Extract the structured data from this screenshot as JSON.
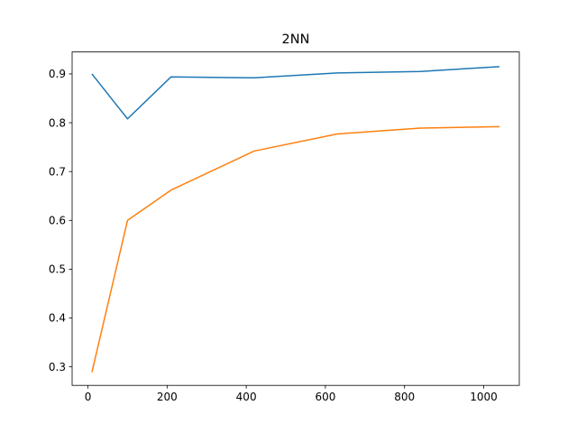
{
  "chart_data": {
    "type": "line",
    "title": "2NN",
    "xlabel": "",
    "ylabel": "",
    "xlim": [
      -40,
      1090
    ],
    "ylim": [
      0.262,
      0.945
    ],
    "xticks": [
      0,
      200,
      400,
      600,
      800,
      1000
    ],
    "yticks": [
      0.3,
      0.4,
      0.5,
      0.6,
      0.7,
      0.8,
      0.9
    ],
    "grid": false,
    "series": [
      {
        "color": "#1f77b4",
        "x": [
          10,
          100,
          210,
          420,
          630,
          840,
          1040
        ],
        "y": [
          0.9,
          0.808,
          0.894,
          0.892,
          0.902,
          0.905,
          0.915
        ]
      },
      {
        "color": "#ff7f0e",
        "x": [
          10,
          100,
          210,
          420,
          630,
          840,
          1040
        ],
        "y": [
          0.289,
          0.6,
          0.662,
          0.742,
          0.777,
          0.789,
          0.792
        ]
      }
    ]
  }
}
